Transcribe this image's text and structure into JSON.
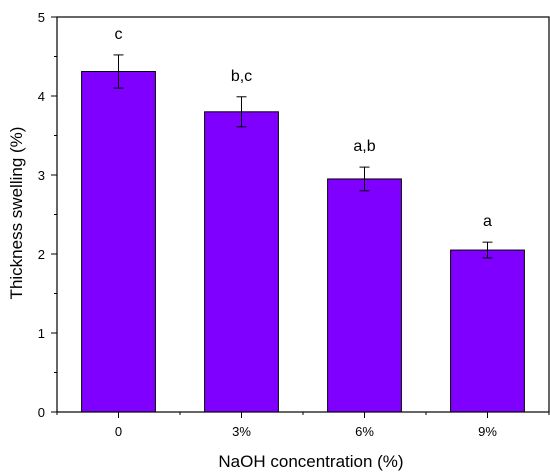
{
  "chart_data": {
    "type": "bar",
    "title": "",
    "xlabel": "NaOH concentration (%)",
    "ylabel": "Thickness swelling (%)",
    "categories": [
      "0",
      "3%",
      "6%",
      "9%"
    ],
    "values": [
      4.31,
      3.8,
      2.95,
      2.05
    ],
    "errors": [
      0.21,
      0.19,
      0.15,
      0.1
    ],
    "significance_labels": [
      "c",
      "b,c",
      "a,b",
      "a"
    ],
    "ylim": [
      0,
      5
    ],
    "yticks": [
      "0",
      "1",
      "2",
      "3",
      "4",
      "5"
    ],
    "grid": false,
    "legend": "none",
    "bar_color": "#8000ff",
    "bar_edge_color": "#000000"
  }
}
